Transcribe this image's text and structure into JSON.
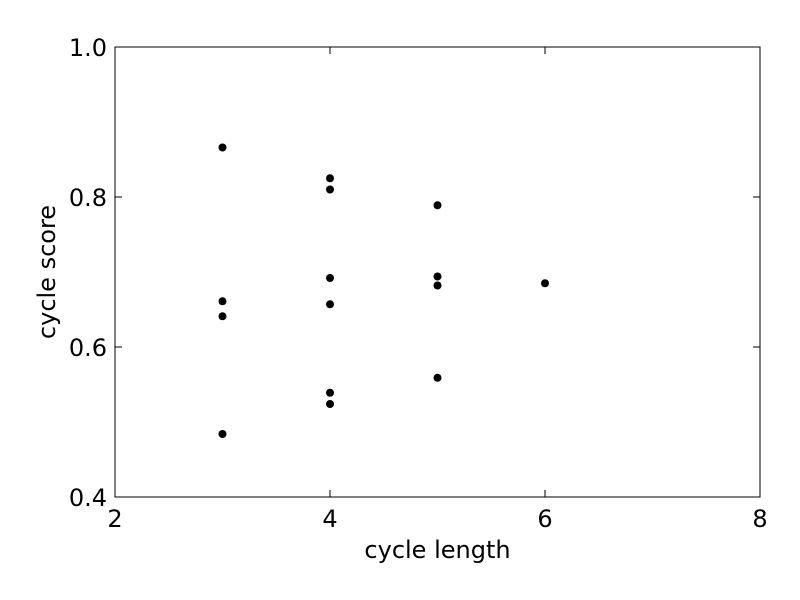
{
  "chart_data": {
    "type": "scatter",
    "title": "",
    "xlabel": "cycle length",
    "ylabel": "cycle score",
    "xlim": [
      2,
      8
    ],
    "ylim": [
      0.4,
      1.0
    ],
    "xticks": [
      "2",
      "4",
      "6",
      "8"
    ],
    "yticks": [
      "0.4",
      "0.6",
      "0.8",
      "1.0"
    ],
    "grid": false,
    "series": [
      {
        "color": "#000000",
        "points": [
          {
            "x": 3,
            "y": 0.866
          },
          {
            "x": 3,
            "y": 0.661
          },
          {
            "x": 3,
            "y": 0.641
          },
          {
            "x": 3,
            "y": 0.484
          },
          {
            "x": 4,
            "y": 0.825
          },
          {
            "x": 4,
            "y": 0.81
          },
          {
            "x": 4,
            "y": 0.692
          },
          {
            "x": 4,
            "y": 0.657
          },
          {
            "x": 4,
            "y": 0.539
          },
          {
            "x": 4,
            "y": 0.524
          },
          {
            "x": 5,
            "y": 0.789
          },
          {
            "x": 5,
            "y": 0.694
          },
          {
            "x": 5,
            "y": 0.682
          },
          {
            "x": 5,
            "y": 0.559
          },
          {
            "x": 6,
            "y": 0.685
          }
        ]
      }
    ]
  }
}
